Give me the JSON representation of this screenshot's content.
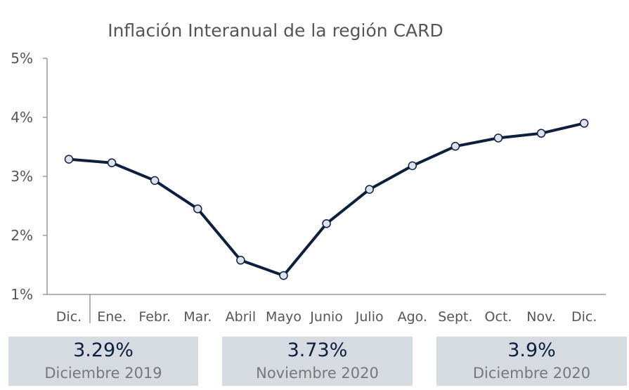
{
  "chart_data": {
    "type": "line",
    "title": "Inflación Interanual de la región CARD",
    "categories": [
      "Dic.",
      "Ene.",
      "Febr.",
      "Mar.",
      "Abril",
      "Mayo",
      "Junio",
      "Julio",
      "Ago.",
      "Sept.",
      "Oct.",
      "Nov.",
      "Dic."
    ],
    "series": [
      {
        "values": [
          3.29,
          3.23,
          2.93,
          2.45,
          1.58,
          1.32,
          2.2,
          2.78,
          3.18,
          3.51,
          3.65,
          3.73,
          3.9
        ]
      }
    ],
    "y_ticks": [
      "1%",
      "2%",
      "3%",
      "4%",
      "5%"
    ],
    "ylim": [
      1,
      5
    ],
    "grid": false,
    "line_color": "#0d1f3c",
    "marker_fill": "#dde3ee"
  },
  "cards": [
    {
      "value": "3.29%",
      "label": "Diciembre 2019"
    },
    {
      "value": "3.73%",
      "label": "Noviembre 2020"
    },
    {
      "value": "3.9%",
      "label": "Diciembre 2020"
    }
  ]
}
